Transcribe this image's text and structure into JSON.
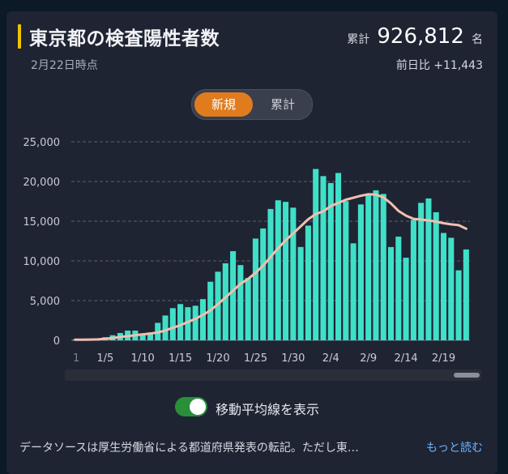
{
  "header": {
    "title": "東京都の検査陽性者数",
    "as_of": "2月22日時点",
    "total_label": "累計",
    "total_value": "926,812",
    "total_unit": "名",
    "diff": "前日比 +11,443"
  },
  "tabs": [
    {
      "label": "新規",
      "active": true
    },
    {
      "label": "累計",
      "active": false
    }
  ],
  "options": {
    "moving_average_label": "移動平均線を表示",
    "moving_average_on": true
  },
  "footer": {
    "source": "データソースは厚生労働省による都道府県発表の転記。ただし東…",
    "more_link": "もっと読む"
  },
  "colors": {
    "accent": "#e07c1e",
    "bar": "#3fe0c8",
    "moving_average": "#f2bfb0",
    "toggle_on": "#2a8f3a",
    "link": "#6db4ff"
  },
  "chart_data": {
    "type": "bar",
    "x_tick_labels": [
      "1",
      "1/5",
      "1/10",
      "1/15",
      "1/20",
      "1/25",
      "1/30",
      "2/4",
      "2/9",
      "2/14",
      "2/19"
    ],
    "y_tick_labels": [
      "0",
      "5,000",
      "10,000",
      "15,000",
      "20,000",
      "25,000"
    ],
    "ylim": [
      0,
      25000
    ],
    "grid": true,
    "dates": [
      "1/1",
      "1/2",
      "1/3",
      "1/4",
      "1/5",
      "1/6",
      "1/7",
      "1/8",
      "1/9",
      "1/10",
      "1/11",
      "1/12",
      "1/13",
      "1/14",
      "1/15",
      "1/16",
      "1/17",
      "1/18",
      "1/19",
      "1/20",
      "1/21",
      "1/22",
      "1/23",
      "1/24",
      "1/25",
      "1/26",
      "1/27",
      "1/28",
      "1/29",
      "1/30",
      "1/31",
      "2/1",
      "2/2",
      "2/3",
      "2/4",
      "2/5",
      "2/6",
      "2/7",
      "2/8",
      "2/9",
      "2/10",
      "2/11",
      "2/12",
      "2/13",
      "2/14",
      "2/15",
      "2/16",
      "2/17",
      "2/18",
      "2/19",
      "2/20",
      "2/21",
      "2/22"
    ],
    "series": [
      {
        "values": [
          79,
          103,
          84,
          151,
          390,
          641,
          922,
          1224,
          1223,
          871,
          1000,
          2198,
          3124,
          4051,
          4560,
          4172,
          4352,
          5185,
          7377,
          8638,
          9699,
          11227,
          9468,
          7844,
          12813,
          14086,
          16538,
          17631,
          17433,
          16706,
          11751,
          14445,
          21576,
          20679,
          19809,
          21072,
          17526,
          12214,
          17113,
          18287,
          18891,
          18431,
          11741,
          13057,
          10404,
          15159,
          17310,
          17864,
          16129,
          13518,
          12910,
          8814,
          11443
        ]
      }
    ],
    "moving_average": [
      80,
      85,
      90,
      110,
      190,
      280,
      420,
      520,
      640,
      760,
      850,
      990,
      1230,
      1580,
      1900,
      2310,
      2700,
      3200,
      3780,
      4550,
      5400,
      6250,
      7120,
      7720,
      8500,
      9400,
      10500,
      11600,
      12600,
      13450,
      14350,
      15250,
      15900,
      16250,
      16900,
      17300,
      17700,
      17950,
      18200,
      18400,
      18350,
      18000,
      17250,
      16300,
      15700,
      15300,
      15200,
      15100,
      14950,
      14750,
      14600,
      14500,
      14050
    ]
  }
}
